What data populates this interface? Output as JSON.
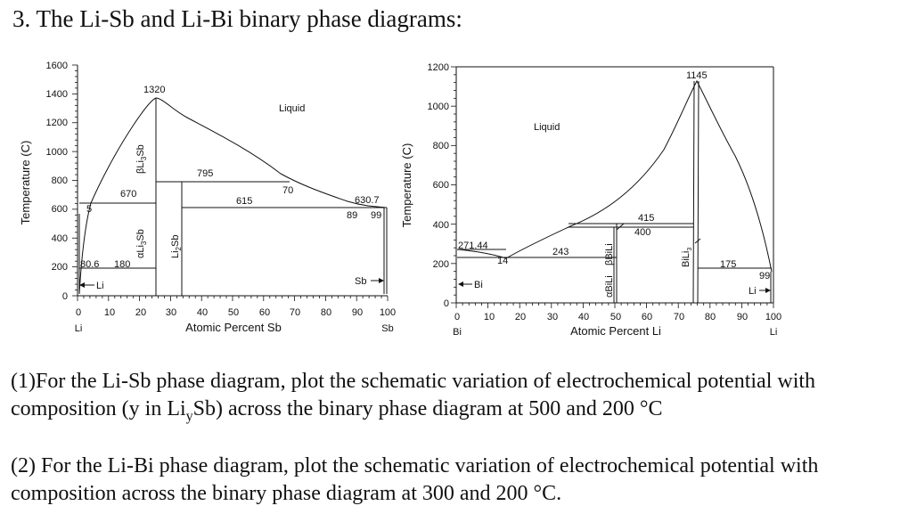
{
  "title": "3. The Li-Sb and Li-Bi binary phase diagrams:",
  "questions": {
    "q1": {
      "prefix": "(1)For the Li-Sb phase diagram, plot the schematic variation of electrochemical potential with composition (y in Li",
      "sub": "y",
      "suffix": "Sb) across the binary phase diagram at 500 and 200 °C"
    },
    "q2": "(2) For the Li-Bi phase diagram, plot the schematic variation of electrochemical potential with composition across the binary phase diagram at 300 and 200 °C."
  },
  "diagrams": [
    {
      "id": "li-sb",
      "ylabel": "Temperature (C)",
      "xlabel": "Atomic Percent Sb",
      "x_ticks": [
        "0",
        "10",
        "20",
        "30",
        "40",
        "50",
        "60",
        "70",
        "80",
        "90",
        "100"
      ],
      "y_ticks": [
        "0",
        "200",
        "400",
        "600",
        "800",
        "1000",
        "1200",
        "1400",
        "1600"
      ],
      "x_left_element": "Li",
      "x_right_element": "Sb",
      "labels": {
        "liquid": "Liquid",
        "peak": "1320",
        "t795": "795",
        "t670": "670",
        "t615": "615",
        "t70": "70",
        "t630": "630.7",
        "c89": "89",
        "c99": "99",
        "c5": "5",
        "t80": "80.6",
        "t180": "180",
        "beta_li3sb": "βLi",
        "beta_sub": "3",
        "beta_end": "Sb",
        "alpha_li3sb": "αLi",
        "alpha_sub": "3",
        "alpha_end": "Sb",
        "li2sb": "Li",
        "li2sb_sub": "2",
        "li2sb_end": "Sb",
        "li_arrow": "Li",
        "sb_arrow": "Sb"
      }
    },
    {
      "id": "li-bi",
      "ylabel": "Temperature (C)",
      "xlabel": "Atomic Percent Li",
      "x_ticks": [
        "0",
        "10",
        "20",
        "30",
        "40",
        "50",
        "60",
        "70",
        "80",
        "90",
        "100"
      ],
      "y_ticks": [
        "0",
        "200",
        "400",
        "600",
        "800",
        "1000",
        "1200"
      ],
      "x_left_element": "Bi",
      "x_right_element": "Li",
      "labels": {
        "liquid": "Liquid",
        "peak": "1145",
        "t415": "415",
        "t400": "400",
        "t271": "271.44",
        "t243": "243",
        "t14": "14",
        "t175": "175",
        "c99": "99",
        "beta_bili": "βBiLi",
        "alpha_bili": "αBiLi",
        "bili3": "BiLi",
        "bili3_sub": "3",
        "bi_arrow": "Bi",
        "li_arrow": "Li"
      }
    }
  ]
}
